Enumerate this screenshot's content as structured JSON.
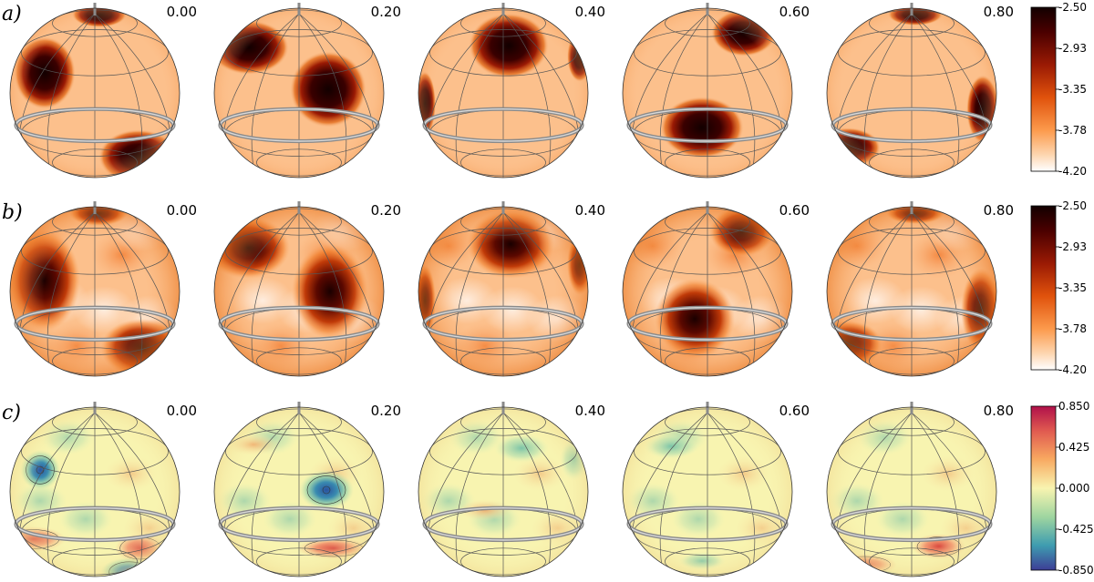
{
  "rows": [
    {
      "label": "a)",
      "colormap": "heat",
      "colorbar": {
        "min": -4.2,
        "max": -2.5,
        "ticks": [
          "-2.50",
          "-2.93",
          "-3.35",
          "-3.78",
          "-4.20"
        ]
      },
      "phases": [
        "0.00",
        "0.20",
        "0.40",
        "0.60",
        "0.80"
      ]
    },
    {
      "label": "b)",
      "colormap": "heat",
      "colorbar": {
        "min": -4.2,
        "max": -2.5,
        "ticks": [
          "-2.50",
          "-2.93",
          "-3.35",
          "-3.78",
          "-4.20"
        ]
      },
      "phases": [
        "0.00",
        "0.20",
        "0.40",
        "0.60",
        "0.80"
      ]
    },
    {
      "label": "c)",
      "colormap": "diverging",
      "colorbar": {
        "min": -0.85,
        "max": 0.85,
        "ticks": [
          "0.850",
          "0.425",
          "0.000",
          "-0.425",
          "-0.850"
        ]
      },
      "phases": [
        "0.00",
        "0.20",
        "0.40",
        "0.60",
        "0.80"
      ]
    }
  ],
  "colors": {
    "heat_base": "#fcc08c",
    "heat_mid": "#c8320a",
    "heat_dark": "#1e0000",
    "div_base": "#f8f4b0",
    "div_warm": "#e06060",
    "div_cool": "#4a7fb8",
    "grid": "#555555",
    "equator_band": "#a8a8a8"
  }
}
